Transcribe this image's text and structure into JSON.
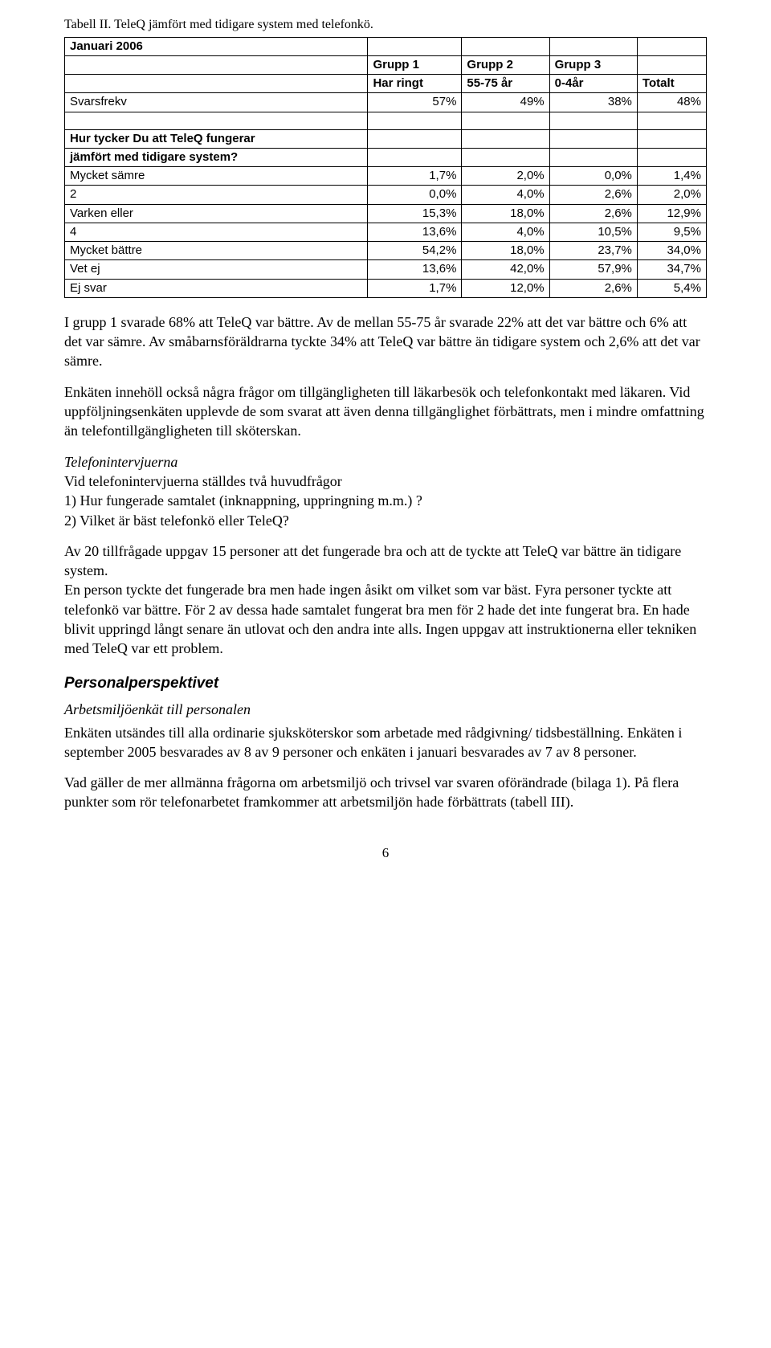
{
  "caption": "Tabell II. TeleQ jämfört med tidigare system med telefonkö.",
  "table": {
    "month": "Januari 2006",
    "header1": [
      "",
      "Grupp 1",
      "Grupp 2",
      "Grupp 3",
      ""
    ],
    "header2": [
      "",
      "Har ringt",
      "55-75 år",
      "0-4år",
      "Totalt"
    ],
    "svars_row": [
      "Svarsfrekv",
      "57%",
      "49%",
      "38%",
      "48%"
    ],
    "question_l1": "Hur tycker Du att TeleQ fungerar",
    "question_l2": "jämfört med tidigare system?",
    "rows": [
      [
        "Mycket sämre",
        "1,7%",
        "2,0%",
        "0,0%",
        "1,4%"
      ],
      [
        "2",
        "0,0%",
        "4,0%",
        "2,6%",
        "2,0%"
      ],
      [
        "Varken eller",
        "15,3%",
        "18,0%",
        "2,6%",
        "12,9%"
      ],
      [
        "4",
        "13,6%",
        "4,0%",
        "10,5%",
        "9,5%"
      ],
      [
        "Mycket bättre",
        "54,2%",
        "18,0%",
        "23,7%",
        "34,0%"
      ],
      [
        "Vet ej",
        "13,6%",
        "42,0%",
        "57,9%",
        "34,7%"
      ],
      [
        "Ej svar",
        "1,7%",
        "12,0%",
        "2,6%",
        "5,4%"
      ]
    ]
  },
  "p1": "I grupp 1 svarade 68% att TeleQ var bättre. Av de mellan 55-75 år svarade 22% att det var bättre och 6% att det var sämre. Av småbarnsföräldrarna tyckte 34% att TeleQ var bättre än tidigare system och 2,6% att det var sämre.",
  "p2": "Enkäten innehöll också några frågor om tillgängligheten till läkarbesök och telefonkontakt med läkaren. Vid uppföljningsenkäten upplevde de som svarat att även denna tillgänglighet förbättrats, men i mindre omfattning än telefontillgängligheten till sköterskan.",
  "tele_head": "Telefonintervjuerna",
  "tele_intro": "Vid telefonintervjuerna ställdes två huvudfrågor",
  "q1": "1)  Hur fungerade samtalet (inknappning, uppringning m.m.) ?",
  "q2": "2)  Vilket är bäst telefonkö eller TeleQ?",
  "p3": "Av 20 tillfrågade uppgav 15 personer att det fungerade bra och att de tyckte att TeleQ var bättre än tidigare system.",
  "p3b": "En person tyckte det fungerade bra men hade ingen åsikt om vilket som var bäst. Fyra personer tyckte att telefonkö var bättre. För 2 av dessa hade samtalet fungerat bra men för 2 hade det inte fungerat bra. En hade blivit uppringd långt senare än utlovat och den andra inte alls. Ingen uppgav att instruktionerna eller tekniken med TeleQ var ett problem.",
  "section2": "Personalperspektivet",
  "sub2": "Arbetsmiljöenkät till personalen",
  "p4": "Enkäten utsändes till alla ordinarie sjuksköterskor som arbetade med rådgivning/ tidsbeställning. Enkäten i september 2005 besvarades av 8 av 9 personer och enkäten i januari besvarades av 7 av 8 personer.",
  "p5": "Vad gäller de mer allmänna frågorna om arbetsmiljö och trivsel var svaren oförändrade (bilaga 1). På flera punkter som rör telefonarbetet framkommer att arbetsmiljön hade förbättrats (tabell III).",
  "page_num": "6"
}
